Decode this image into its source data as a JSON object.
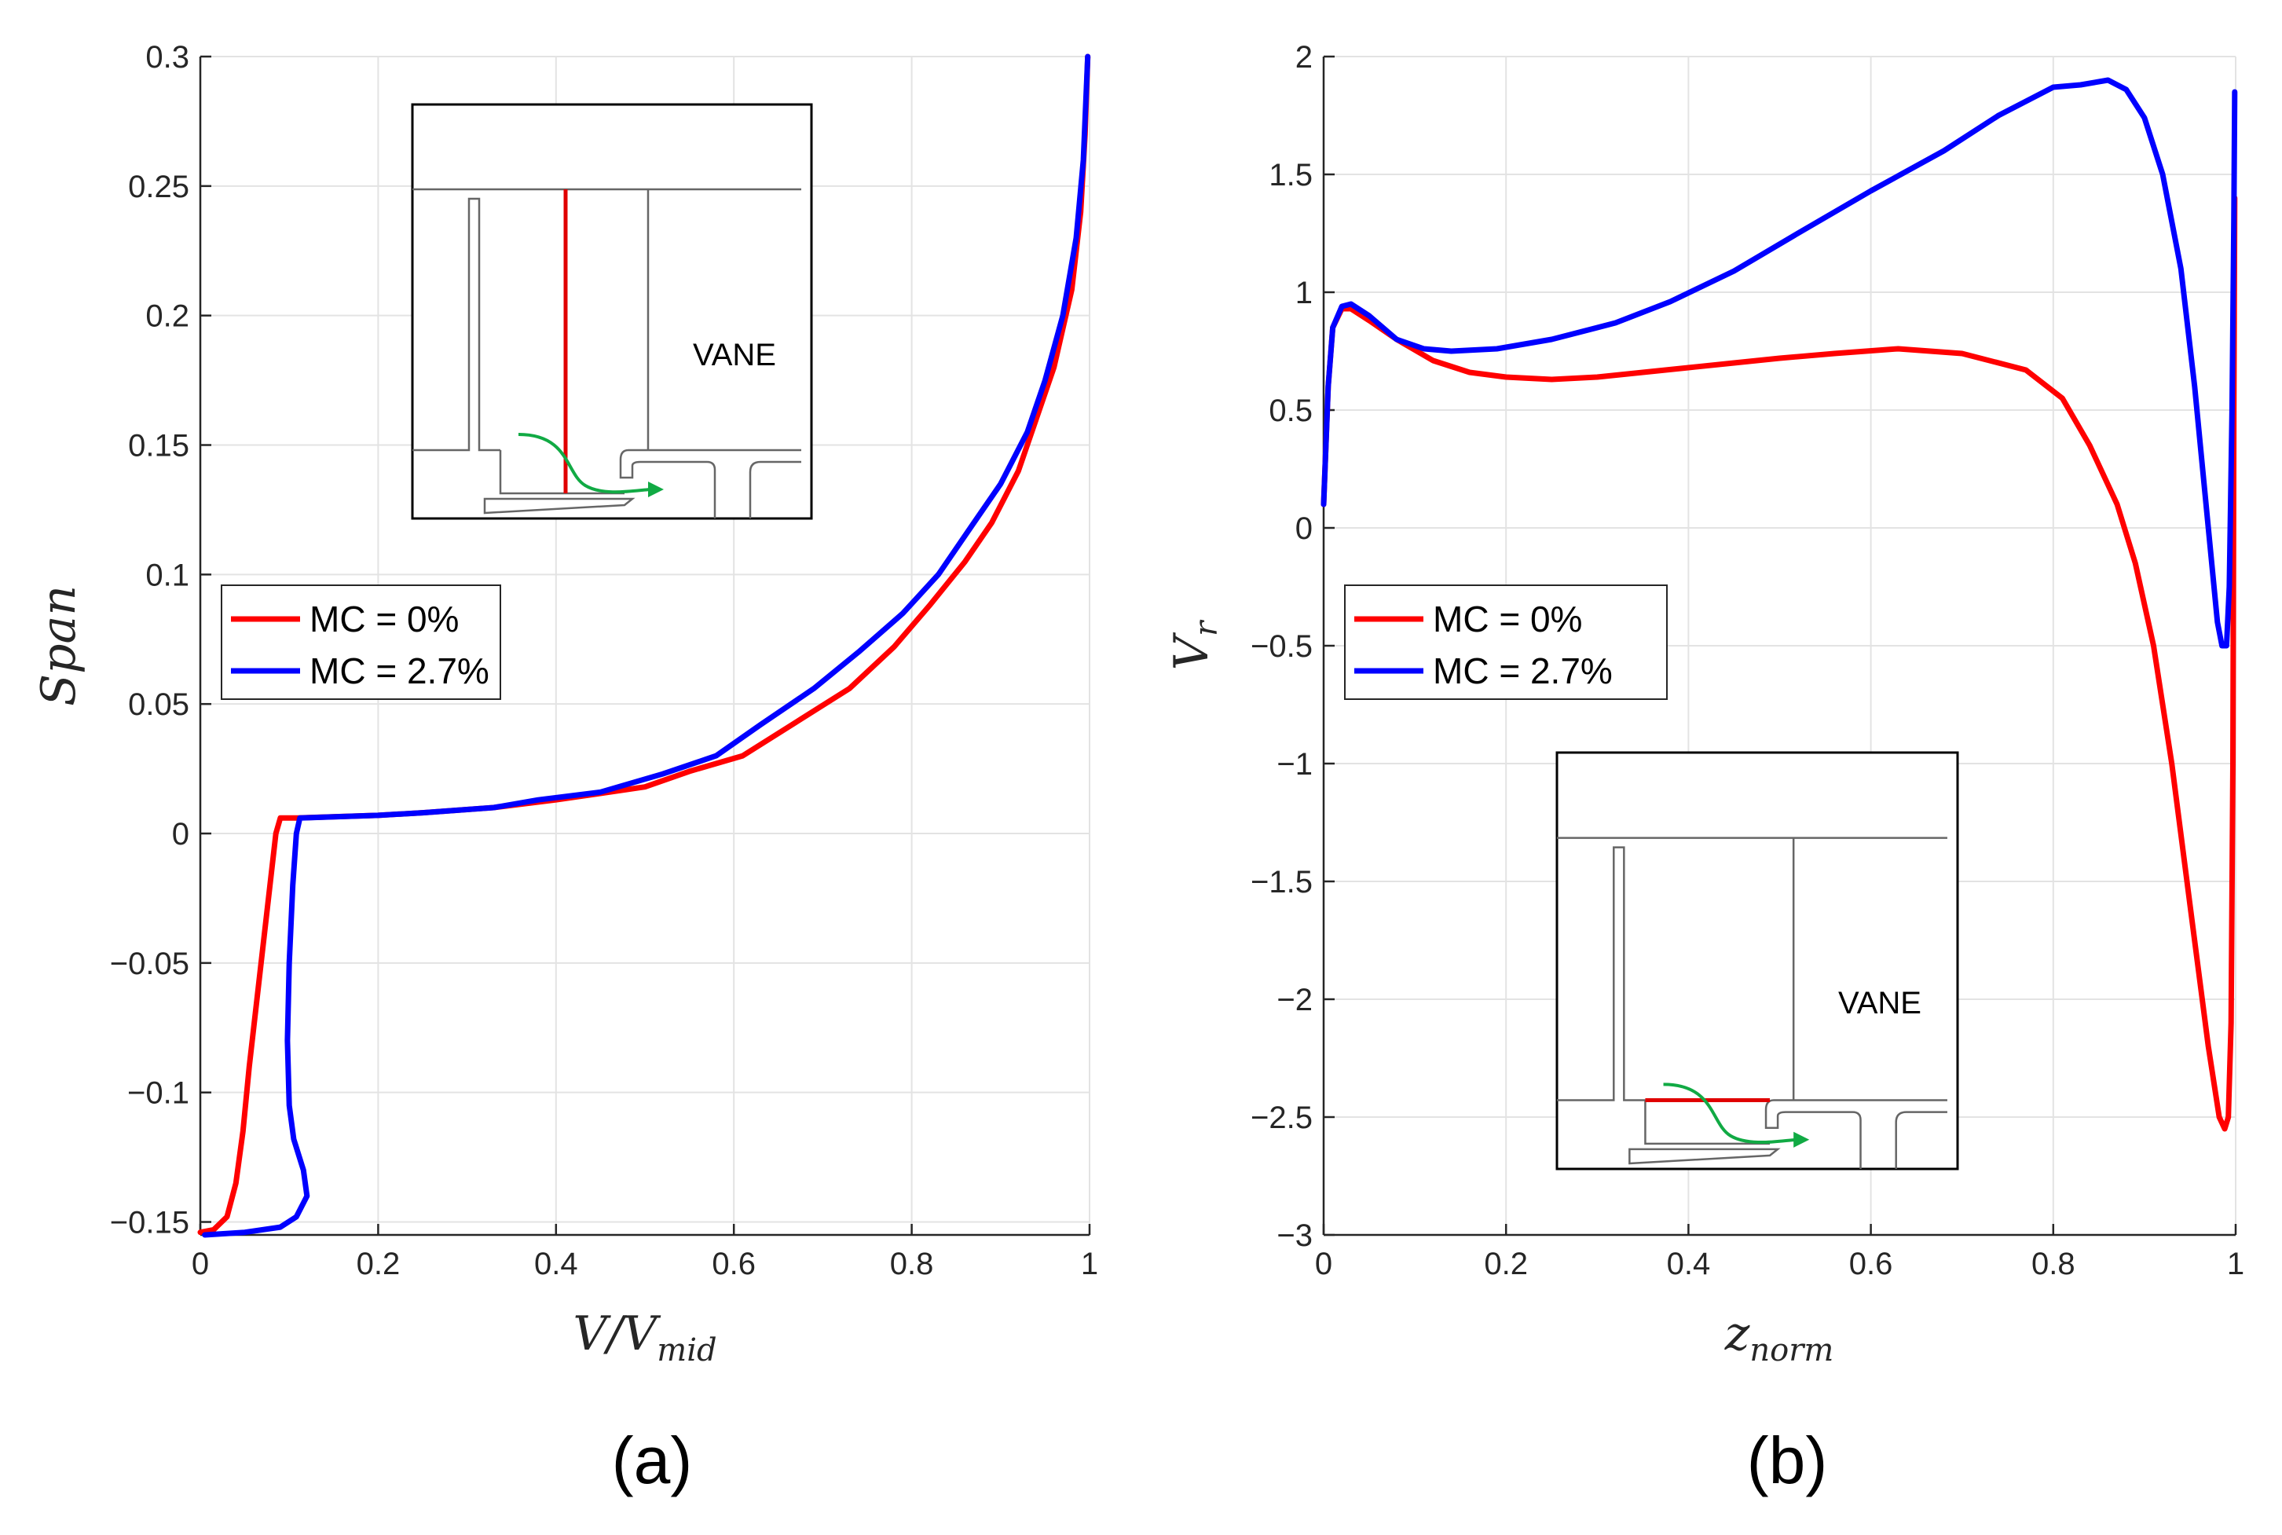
{
  "chart_data": [
    {
      "type": "line",
      "panel_label": "(a)",
      "xlabel": "V/V",
      "xlabel_sub": "mid",
      "ylabel": "Span",
      "xlim": [
        0,
        1
      ],
      "ylim": [
        -0.155,
        0.3
      ],
      "xticks": [
        0,
        0.2,
        0.4,
        0.6,
        0.8,
        1
      ],
      "xtick_labels": [
        "0",
        "0.2",
        "0.4",
        "0.6",
        "0.8",
        "1"
      ],
      "yticks": [
        -0.15,
        -0.1,
        -0.05,
        0,
        0.05,
        0.1,
        0.15,
        0.2,
        0.25,
        0.3
      ],
      "ytick_labels": [
        "−0.15",
        "−0.1",
        "−0.05",
        "0",
        "0.05",
        "0.1",
        "0.15",
        "0.2",
        "0.25",
        "0.3"
      ],
      "grid": true,
      "legend": "upper-left",
      "inset_label": "VANE",
      "series": [
        {
          "name": "MC = 0%",
          "color": "#ff0000",
          "points": [
            [
              0,
              -0.154
            ],
            [
              0.015,
              -0.153
            ],
            [
              0.03,
              -0.148
            ],
            [
              0.04,
              -0.135
            ],
            [
              0.048,
              -0.115
            ],
            [
              0.055,
              -0.09
            ],
            [
              0.065,
              -0.06
            ],
            [
              0.075,
              -0.03
            ],
            [
              0.085,
              0
            ],
            [
              0.09,
              0.006
            ],
            [
              0.11,
              0.006
            ],
            [
              0.2,
              0.007
            ],
            [
              0.25,
              0.008
            ],
            [
              0.33,
              0.01
            ],
            [
              0.4,
              0.013
            ],
            [
              0.5,
              0.018
            ],
            [
              0.55,
              0.024
            ],
            [
              0.61,
              0.03
            ],
            [
              0.67,
              0.043
            ],
            [
              0.73,
              0.056
            ],
            [
              0.78,
              0.072
            ],
            [
              0.82,
              0.088
            ],
            [
              0.86,
              0.105
            ],
            [
              0.89,
              0.12
            ],
            [
              0.92,
              0.14
            ],
            [
              0.94,
              0.16
            ],
            [
              0.96,
              0.18
            ],
            [
              0.98,
              0.21
            ],
            [
              0.99,
              0.24
            ],
            [
              0.995,
              0.27
            ],
            [
              0.998,
              0.3
            ]
          ]
        },
        {
          "name": "MC = 2.7%",
          "color": "#0000ff",
          "points": [
            [
              0.005,
              -0.155
            ],
            [
              0.05,
              -0.154
            ],
            [
              0.09,
              -0.152
            ],
            [
              0.108,
              -0.148
            ],
            [
              0.12,
              -0.14
            ],
            [
              0.116,
              -0.13
            ],
            [
              0.105,
              -0.118
            ],
            [
              0.1,
              -0.105
            ],
            [
              0.098,
              -0.08
            ],
            [
              0.1,
              -0.05
            ],
            [
              0.104,
              -0.02
            ],
            [
              0.108,
              0
            ],
            [
              0.112,
              0.006
            ],
            [
              0.2,
              0.007
            ],
            [
              0.25,
              0.008
            ],
            [
              0.33,
              0.01
            ],
            [
              0.38,
              0.013
            ],
            [
              0.45,
              0.016
            ],
            [
              0.52,
              0.023
            ],
            [
              0.58,
              0.03
            ],
            [
              0.63,
              0.042
            ],
            [
              0.69,
              0.056
            ],
            [
              0.74,
              0.07
            ],
            [
              0.79,
              0.085
            ],
            [
              0.83,
              0.1
            ],
            [
              0.87,
              0.12
            ],
            [
              0.9,
              0.135
            ],
            [
              0.93,
              0.155
            ],
            [
              0.95,
              0.175
            ],
            [
              0.97,
              0.2
            ],
            [
              0.985,
              0.23
            ],
            [
              0.993,
              0.26
            ],
            [
              0.998,
              0.3
            ]
          ]
        }
      ]
    },
    {
      "type": "line",
      "panel_label": "(b)",
      "xlabel": "z",
      "xlabel_sub": "norm",
      "ylabel": "V",
      "ylabel_sub": "r",
      "xlim": [
        0,
        1
      ],
      "ylim": [
        -3,
        2
      ],
      "xticks": [
        0,
        0.2,
        0.4,
        0.6,
        0.8,
        1
      ],
      "xtick_labels": [
        "0",
        "0.2",
        "0.4",
        "0.6",
        "0.8",
        "1"
      ],
      "yticks": [
        -3,
        -2.5,
        -2,
        -1.5,
        -1,
        -0.5,
        0,
        0.5,
        1,
        1.5,
        2
      ],
      "ytick_labels": [
        "−3",
        "−2.5",
        "−2",
        "−1.5",
        "−1",
        "−0.5",
        "0",
        "0.5",
        "1",
        "1.5",
        "2"
      ],
      "grid": true,
      "legend": "middle-left",
      "inset_label": "VANE",
      "series": [
        {
          "name": "MC = 0%",
          "color": "#ff0000",
          "points": [
            [
              0,
              0.1
            ],
            [
              0.005,
              0.6
            ],
            [
              0.01,
              0.85
            ],
            [
              0.02,
              0.93
            ],
            [
              0.03,
              0.93
            ],
            [
              0.05,
              0.88
            ],
            [
              0.08,
              0.8
            ],
            [
              0.12,
              0.71
            ],
            [
              0.16,
              0.66
            ],
            [
              0.2,
              0.64
            ],
            [
              0.25,
              0.63
            ],
            [
              0.3,
              0.64
            ],
            [
              0.35,
              0.66
            ],
            [
              0.4,
              0.68
            ],
            [
              0.45,
              0.7
            ],
            [
              0.5,
              0.72
            ],
            [
              0.56,
              0.74
            ],
            [
              0.63,
              0.76
            ],
            [
              0.7,
              0.74
            ],
            [
              0.77,
              0.67
            ],
            [
              0.81,
              0.55
            ],
            [
              0.84,
              0.35
            ],
            [
              0.87,
              0.1
            ],
            [
              0.89,
              -0.15
            ],
            [
              0.91,
              -0.5
            ],
            [
              0.93,
              -1
            ],
            [
              0.95,
              -1.6
            ],
            [
              0.97,
              -2.2
            ],
            [
              0.982,
              -2.5
            ],
            [
              0.988,
              -2.55
            ],
            [
              0.992,
              -2.5
            ],
            [
              0.995,
              -2.1
            ],
            [
              0.997,
              -1
            ],
            [
              0.998,
              0.5
            ],
            [
              0.999,
              1.4
            ]
          ]
        },
        {
          "name": "MC = 2.7%",
          "color": "#0000ff",
          "points": [
            [
              0,
              0.1
            ],
            [
              0.005,
              0.6
            ],
            [
              0.01,
              0.85
            ],
            [
              0.02,
              0.94
            ],
            [
              0.03,
              0.95
            ],
            [
              0.05,
              0.9
            ],
            [
              0.08,
              0.8
            ],
            [
              0.11,
              0.76
            ],
            [
              0.14,
              0.75
            ],
            [
              0.19,
              0.76
            ],
            [
              0.25,
              0.8
            ],
            [
              0.32,
              0.87
            ],
            [
              0.38,
              0.96
            ],
            [
              0.45,
              1.09
            ],
            [
              0.52,
              1.25
            ],
            [
              0.6,
              1.43
            ],
            [
              0.68,
              1.6
            ],
            [
              0.74,
              1.75
            ],
            [
              0.8,
              1.87
            ],
            [
              0.83,
              1.88
            ],
            [
              0.86,
              1.9
            ],
            [
              0.88,
              1.86
            ],
            [
              0.9,
              1.74
            ],
            [
              0.92,
              1.5
            ],
            [
              0.94,
              1.1
            ],
            [
              0.955,
              0.6
            ],
            [
              0.97,
              0
            ],
            [
              0.98,
              -0.4
            ],
            [
              0.985,
              -0.5
            ],
            [
              0.99,
              -0.5
            ],
            [
              0.993,
              -0.25
            ],
            [
              0.996,
              0.5
            ],
            [
              0.998,
              1.3
            ],
            [
              0.999,
              1.85
            ]
          ]
        }
      ]
    }
  ]
}
